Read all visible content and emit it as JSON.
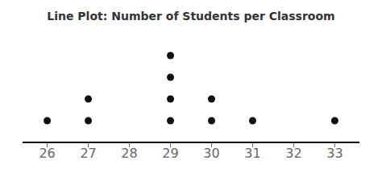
{
  "chart_data": {
    "type": "dot",
    "title": "Line Plot: Number of Students per Classroom",
    "x": [
      26,
      27,
      28,
      29,
      30,
      31,
      32,
      33
    ],
    "values": [
      1,
      2,
      0,
      4,
      2,
      1,
      0,
      1
    ],
    "color": "#111111",
    "xlim": [
      25.4,
      33.6
    ],
    "xticks": [
      26,
      27,
      28,
      29,
      30,
      31,
      32,
      33
    ],
    "ylim": [
      0,
      5
    ],
    "grid": false,
    "tick_labels": "x"
  }
}
